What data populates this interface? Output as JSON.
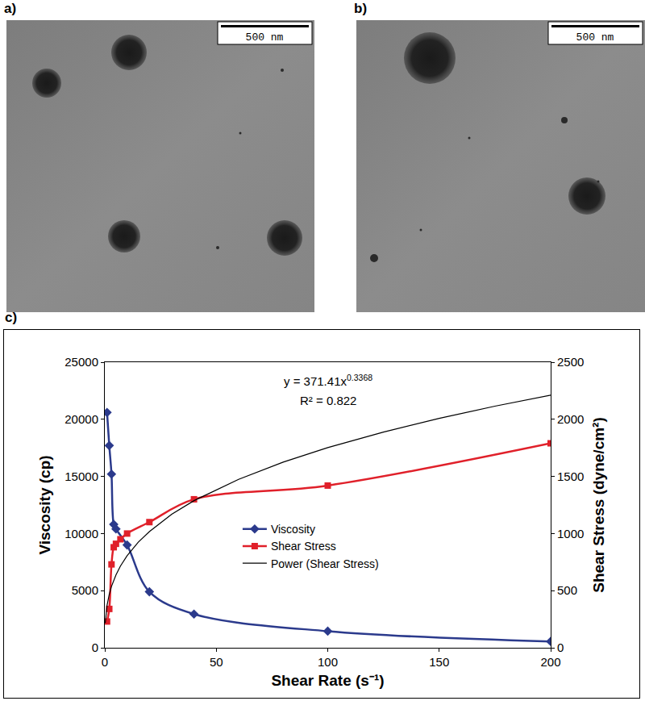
{
  "figure": {
    "panels": [
      {
        "label": "a)",
        "scale_bar": "500 nm"
      },
      {
        "label": "b)",
        "scale_bar": "500 nm"
      }
    ]
  },
  "chart_data": {
    "label": "c)",
    "type": "line",
    "xlabel": "Shear Rate (s⁻¹)",
    "ylabel": "Viscosity (cp)",
    "y2label": "Shear Stress (dyne/cm²)",
    "xlim": [
      0,
      200
    ],
    "xticks": [
      0,
      50,
      100,
      150,
      200
    ],
    "ylim": [
      0,
      25000
    ],
    "yticks": [
      0,
      5000,
      10000,
      15000,
      20000,
      25000
    ],
    "y2lim": [
      0,
      2500
    ],
    "y2ticks": [
      0,
      500,
      1000,
      1500,
      2000,
      2500
    ],
    "grid": false,
    "legend": "center",
    "annotations": [
      {
        "text": "y = 371.41x",
        "superscript": "0.3368"
      },
      {
        "text": "R² = 0.822"
      }
    ],
    "series": [
      {
        "name": "Viscosity",
        "color": "#2b3a8c",
        "marker": "diamond",
        "line_style": "solid",
        "x": [
          1,
          2,
          3,
          4,
          5,
          10,
          20,
          40,
          100,
          200
        ],
        "values": [
          20600,
          17700,
          15200,
          10800,
          10400,
          9000,
          4900,
          2950,
          1450,
          550
        ]
      },
      {
        "name": "Shear Stress",
        "color": "#e0202a",
        "marker": "square",
        "line_style": "solid",
        "axis": "y2",
        "x": [
          1,
          2,
          3,
          4,
          5,
          7,
          10,
          20,
          40,
          100,
          200
        ],
        "values": [
          230,
          340,
          730,
          880,
          910,
          950,
          1000,
          1100,
          1300,
          1420,
          1790
        ]
      },
      {
        "name": "Power (Shear Stress)",
        "color": "#000000",
        "marker": "none",
        "line_style": "solid",
        "axis": "y2",
        "x": [
          0.2,
          0.5,
          1,
          2,
          3,
          5,
          7,
          10,
          15,
          20,
          30,
          40,
          60,
          80,
          100,
          125,
          150,
          175,
          200
        ],
        "values": [
          216,
          294,
          371,
          469,
          538,
          638,
          715,
          806,
          924,
          1017,
          1168,
          1288,
          1474,
          1625,
          1752,
          1888,
          2008,
          2115,
          2212
        ]
      }
    ]
  }
}
